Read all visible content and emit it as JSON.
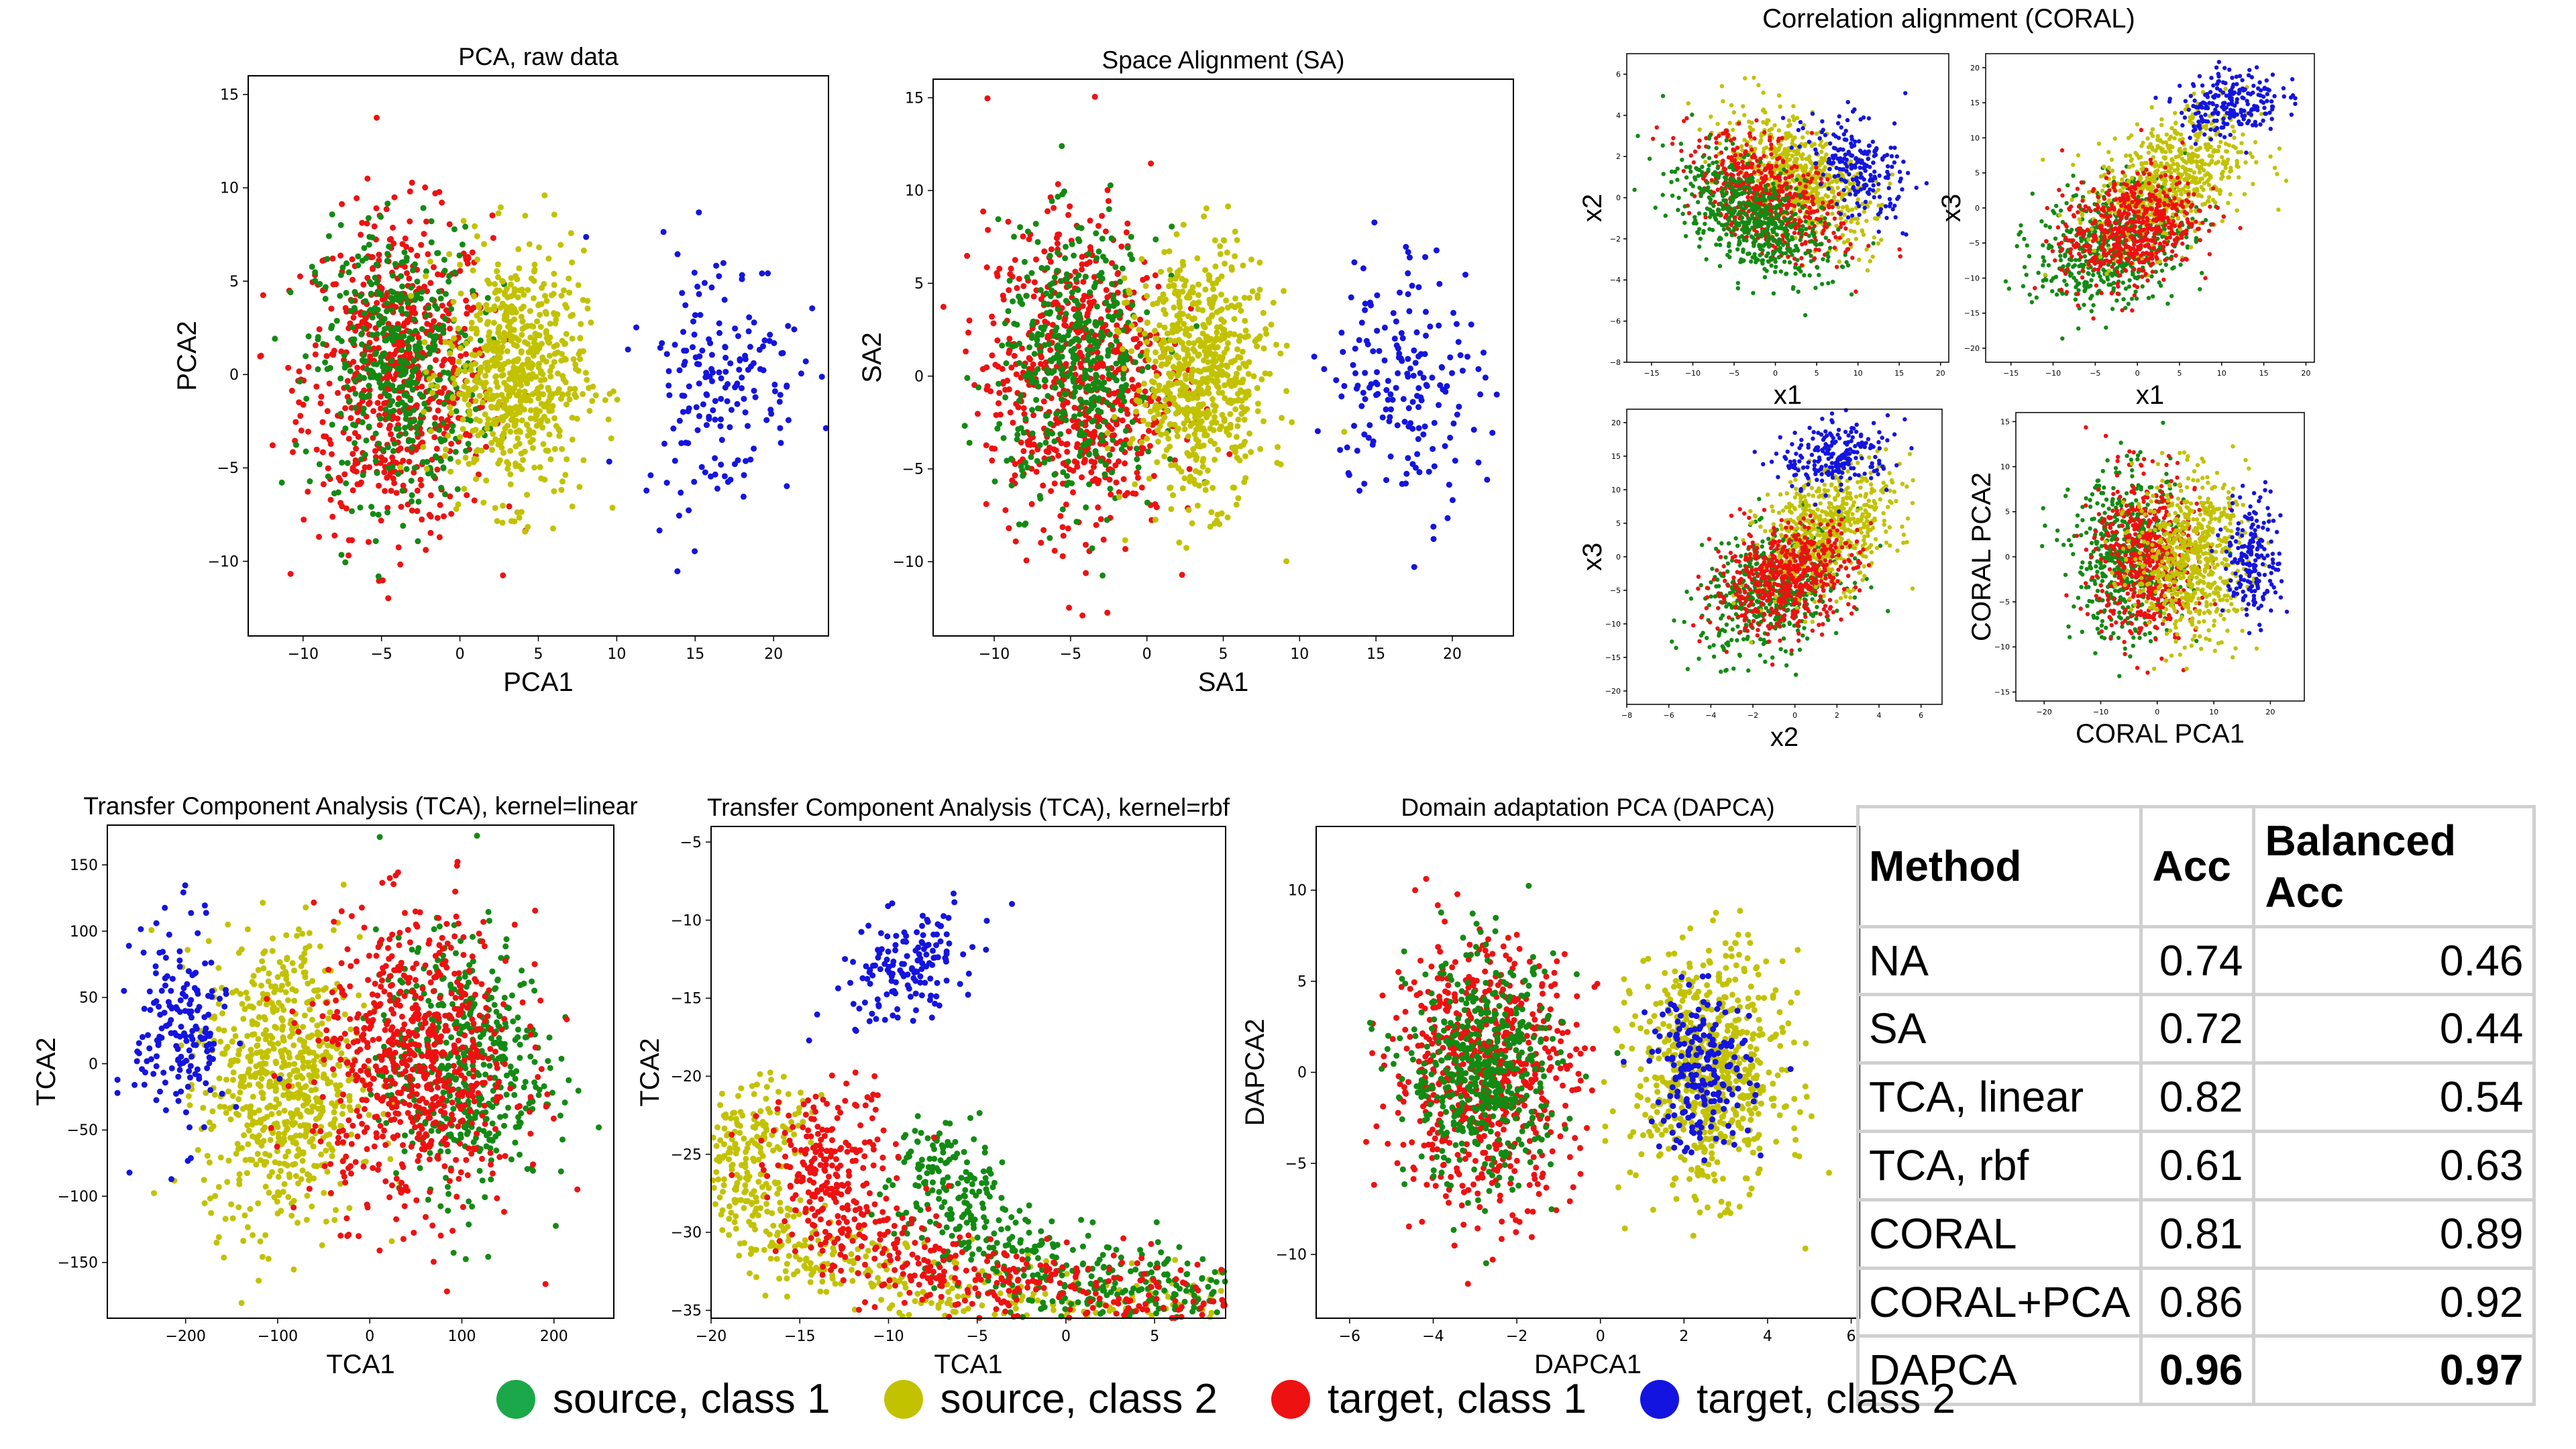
{
  "colors": {
    "source_class1": "#138a13",
    "source_class2": "#c2c200",
    "target_class1": "#ee1111",
    "target_class2": "#1414e0"
  },
  "header": {
    "coral_title": "Correlation alignment (CORAL)"
  },
  "legend": [
    {
      "label": "source, class 1",
      "color": "#1aa84a"
    },
    {
      "label": "source, class 2",
      "color": "#c2c200"
    },
    {
      "label": "target, class 1",
      "color": "#ee1111"
    },
    {
      "label": "target, class 2",
      "color": "#1414e0"
    }
  ],
  "table": {
    "headers": [
      "Method",
      "Acc",
      "Balanced Acc"
    ],
    "rows": [
      {
        "method": "NA",
        "acc": "0.74",
        "bacc": "0.46",
        "best": false
      },
      {
        "method": "SA",
        "acc": "0.72",
        "bacc": "0.44",
        "best": false
      },
      {
        "method": "TCA, linear",
        "acc": "0.82",
        "bacc": "0.54",
        "best": false
      },
      {
        "method": "TCA, rbf",
        "acc": "0.61",
        "bacc": "0.63",
        "best": false
      },
      {
        "method": "CORAL",
        "acc": "0.81",
        "bacc": "0.89",
        "best": false
      },
      {
        "method": "CORAL+PCA",
        "acc": "0.86",
        "bacc": "0.92",
        "best": false
      },
      {
        "method": "DAPCA",
        "acc": "0.96",
        "bacc": "0.97",
        "best": true
      }
    ]
  },
  "chart_data": [
    {
      "id": "pca",
      "type": "scatter",
      "title": "PCA, raw data",
      "xlabel": "PCA1",
      "ylabel": "PCA2",
      "xlim": [
        -13.5,
        23.5
      ],
      "ylim": [
        -14,
        16
      ],
      "xticks": [
        -10,
        -5,
        0,
        5,
        10,
        15,
        20
      ],
      "yticks": [
        -10,
        -5,
        0,
        5,
        10,
        15
      ],
      "series": [
        {
          "name": "target, class 1",
          "color": "red",
          "n": 700,
          "cx": -4,
          "cy": 0,
          "sx": 3,
          "sy": 4.2
        },
        {
          "name": "source, class 1",
          "color": "green",
          "n": 450,
          "cx": -4,
          "cy": 0.5,
          "sx": 2.6,
          "sy": 3.6
        },
        {
          "name": "source, class 2",
          "color": "yellow",
          "n": 650,
          "cx": 3.5,
          "cy": 0,
          "sx": 2.2,
          "sy": 3.3
        },
        {
          "name": "target, class 2",
          "color": "blue",
          "n": 180,
          "cx": 16.5,
          "cy": 0,
          "sx": 2.5,
          "sy": 3.5
        }
      ]
    },
    {
      "id": "sa",
      "type": "scatter",
      "title": "Space Alignment (SA)",
      "xlabel": "SA1",
      "ylabel": "SA2",
      "xlim": [
        -14,
        24
      ],
      "ylim": [
        -14,
        16
      ],
      "xticks": [
        -10,
        -5,
        0,
        5,
        10,
        15,
        20
      ],
      "yticks": [
        -10,
        -5,
        0,
        5,
        10,
        15
      ],
      "series": [
        {
          "name": "target, class 1",
          "color": "red",
          "n": 700,
          "cx": -4.5,
          "cy": 0,
          "sx": 3,
          "sy": 4.2
        },
        {
          "name": "source, class 1",
          "color": "green",
          "n": 450,
          "cx": -4.5,
          "cy": 0.5,
          "sx": 2.6,
          "sy": 3.6
        },
        {
          "name": "source, class 2",
          "color": "yellow",
          "n": 650,
          "cx": 3.5,
          "cy": 0,
          "sx": 2.2,
          "sy": 3.3
        },
        {
          "name": "target, class 2",
          "color": "blue",
          "n": 180,
          "cx": 17,
          "cy": 0,
          "sx": 2.5,
          "sy": 3.5
        }
      ]
    },
    {
      "id": "coral_x1x2",
      "type": "scatter",
      "title": "",
      "xlabel": "x1",
      "ylabel": "x2",
      "xlim": [
        -18,
        21
      ],
      "ylim": [
        -8,
        7
      ],
      "xticks": [
        -15,
        -10,
        -5,
        0,
        5,
        10,
        15,
        20
      ],
      "yticks": [
        -8,
        -6,
        -4,
        -2,
        0,
        2,
        4,
        6
      ],
      "series": [
        {
          "name": "source, class 2",
          "color": "yellow",
          "n": 650,
          "cx": 3,
          "cy": 1,
          "sx": 4.5,
          "sy": 1.5,
          "rho": -0.55
        },
        {
          "name": "target, class 1",
          "color": "red",
          "n": 550,
          "cx": -1,
          "cy": 0,
          "sx": 4.5,
          "sy": 1.5,
          "rho": -0.55
        },
        {
          "name": "source, class 1",
          "color": "green",
          "n": 550,
          "cx": -3,
          "cy": -1,
          "sx": 4.5,
          "sy": 1.5,
          "rho": -0.55
        },
        {
          "name": "target, class 2",
          "color": "blue",
          "n": 220,
          "cx": 10,
          "cy": 1.5,
          "sx": 3,
          "sy": 1.3,
          "rho": -0.5
        }
      ]
    },
    {
      "id": "coral_x1x3",
      "type": "scatter",
      "title": "",
      "xlabel": "x1",
      "ylabel": "x3",
      "xlim": [
        -18,
        21
      ],
      "ylim": [
        -22,
        22
      ],
      "xticks": [
        -15,
        -10,
        -5,
        0,
        5,
        10,
        15,
        20
      ],
      "yticks": [
        -20,
        -15,
        -10,
        -5,
        0,
        5,
        10,
        15,
        20
      ],
      "series": [
        {
          "name": "source, class 1",
          "color": "green",
          "n": 550,
          "cx": -3,
          "cy": -5,
          "sx": 4.5,
          "sy": 4.5,
          "rho": 0.3
        },
        {
          "name": "source, class 2",
          "color": "yellow",
          "n": 650,
          "cx": 4,
          "cy": 4,
          "sx": 4.5,
          "sy": 5,
          "rho": 0.4
        },
        {
          "name": "target, class 1",
          "color": "red",
          "n": 550,
          "cx": -1,
          "cy": -3,
          "sx": 4,
          "sy": 4,
          "rho": 0.3
        },
        {
          "name": "target, class 2",
          "color": "blue",
          "n": 220,
          "cx": 11,
          "cy": 15,
          "sx": 3,
          "sy": 2.5,
          "rho": 0.2
        }
      ]
    },
    {
      "id": "coral_x2x3",
      "type": "scatter",
      "title": "",
      "xlabel": "x2",
      "ylabel": "x3",
      "xlim": [
        -8,
        7
      ],
      "ylim": [
        -22,
        22
      ],
      "xticks": [
        -8,
        -6,
        -4,
        -2,
        0,
        2,
        4,
        6
      ],
      "yticks": [
        -20,
        -15,
        -10,
        -5,
        0,
        5,
        10,
        15,
        20
      ],
      "series": [
        {
          "name": "source, class 1",
          "color": "green",
          "n": 550,
          "cx": -1,
          "cy": -5,
          "sx": 1.7,
          "sy": 4.5,
          "rho": 0.3
        },
        {
          "name": "source, class 2",
          "color": "yellow",
          "n": 650,
          "cx": 1.5,
          "cy": 4,
          "sx": 1.6,
          "sy": 5,
          "rho": 0.4
        },
        {
          "name": "target, class 1",
          "color": "red",
          "n": 550,
          "cx": -0.5,
          "cy": -3,
          "sx": 1.7,
          "sy": 4,
          "rho": 0.3
        },
        {
          "name": "target, class 2",
          "color": "blue",
          "n": 220,
          "cx": 2,
          "cy": 15,
          "sx": 1.3,
          "sy": 2.5,
          "rho": 0.2
        }
      ]
    },
    {
      "id": "coral_pca",
      "type": "scatter",
      "title": "",
      "xlabel": "CORAL PCA1",
      "ylabel": "CORAL PCA2",
      "xlim": [
        -25,
        26
      ],
      "ylim": [
        -16,
        16
      ],
      "xticks": [
        -20,
        -10,
        0,
        10,
        20
      ],
      "yticks": [
        -15,
        -10,
        -5,
        0,
        5,
        10,
        15
      ],
      "series": [
        {
          "name": "source, class 1",
          "color": "green",
          "n": 550,
          "cx": -5,
          "cy": 0,
          "sx": 5,
          "sy": 4.5
        },
        {
          "name": "target, class 1",
          "color": "red",
          "n": 550,
          "cx": -2,
          "cy": 0,
          "sx": 4.5,
          "sy": 4.5
        },
        {
          "name": "source, class 2",
          "color": "yellow",
          "n": 650,
          "cx": 6,
          "cy": 0,
          "sx": 5,
          "sy": 4.5
        },
        {
          "name": "target, class 2",
          "color": "blue",
          "n": 200,
          "cx": 17,
          "cy": 0,
          "sx": 2.5,
          "sy": 3.5
        }
      ]
    },
    {
      "id": "tca_linear",
      "type": "scatter",
      "title": "Transfer Component Analysis (TCA), kernel=linear",
      "xlabel": "TCA1",
      "ylabel": "TCA2",
      "xlim": [
        -285,
        265
      ],
      "ylim": [
        -192,
        180
      ],
      "xticks": [
        -200,
        -100,
        0,
        100,
        200
      ],
      "yticks": [
        -150,
        -100,
        -50,
        0,
        50,
        100,
        150
      ],
      "series": [
        {
          "name": "source, class 2",
          "color": "yellow",
          "n": 700,
          "cx": -95,
          "cy": -15,
          "sx": 42,
          "sy": 55
        },
        {
          "name": "source, class 1",
          "color": "green",
          "n": 500,
          "cx": 100,
          "cy": 0,
          "sx": 45,
          "sy": 48
        },
        {
          "name": "target, class 1",
          "color": "red",
          "n": 700,
          "cx": 50,
          "cy": 0,
          "sx": 55,
          "sy": 55
        },
        {
          "name": "target, class 2",
          "color": "blue",
          "n": 180,
          "cx": -205,
          "cy": 25,
          "sx": 25,
          "sy": 40
        }
      ]
    },
    {
      "id": "tca_rbf",
      "type": "scatter",
      "title": "Transfer Component Analysis (TCA), kernel=rbf",
      "xlabel": "TCA1",
      "ylabel": "TCA2",
      "xlim": [
        -20,
        9
      ],
      "ylim": [
        -35.5,
        -4
      ],
      "xticks": [
        -20,
        -15,
        -10,
        -5,
        0,
        5
      ],
      "yticks": [
        -35,
        -30,
        -25,
        -20,
        -15,
        -10,
        -5
      ],
      "series": [
        {
          "name": "source, class 2",
          "color": "yellow",
          "n": 550,
          "arc": true,
          "ax": 6,
          "ay": -26,
          "rx": 25,
          "ry": 9,
          "t0": 1.4,
          "t1": 3.6,
          "jit": 1.4
        },
        {
          "name": "source, class 1",
          "color": "green",
          "n": 500,
          "arc": true,
          "ax": 6,
          "ay": -26,
          "rx": 13,
          "ry": 8,
          "t0": 1.2,
          "t1": 3.4,
          "jit": 1.6
        },
        {
          "name": "target, class 1",
          "color": "red",
          "n": 600,
          "arc": true,
          "ax": 6,
          "ay": -26,
          "rx": 20,
          "ry": 8.5,
          "t0": 1.3,
          "t1": 3.6,
          "jit": 1.6
        },
        {
          "name": "target, class 2",
          "color": "blue",
          "n": 150,
          "cx": -9,
          "cy": -13,
          "sx": 2,
          "sy": 2,
          "rho": 0.5
        }
      ]
    },
    {
      "id": "dapca",
      "type": "scatter",
      "title": "Domain adaptation PCA (DAPCA)",
      "xlabel": "DAPCA1",
      "ylabel": "DAPCA2",
      "xlim": [
        -6.8,
        6.2
      ],
      "ylim": [
        -13.5,
        13.5
      ],
      "xticks": [
        -6,
        -4,
        -2,
        0,
        2,
        4,
        6
      ],
      "yticks": [
        -10,
        -5,
        0,
        5,
        10
      ],
      "series": [
        {
          "name": "source, class 2",
          "color": "yellow",
          "n": 650,
          "cx": 2.6,
          "cy": 0,
          "sx": 0.9,
          "sy": 3.2
        },
        {
          "name": "target, class 1",
          "color": "red",
          "n": 700,
          "cx": -2.8,
          "cy": 0,
          "sx": 1.1,
          "sy": 3.5
        },
        {
          "name": "source, class 1",
          "color": "green",
          "n": 500,
          "cx": -2.8,
          "cy": 0,
          "sx": 0.9,
          "sy": 3.1
        },
        {
          "name": "target, class 2",
          "color": "blue",
          "n": 200,
          "cx": 2.4,
          "cy": 0,
          "sx": 0.6,
          "sy": 2.2
        }
      ]
    }
  ]
}
